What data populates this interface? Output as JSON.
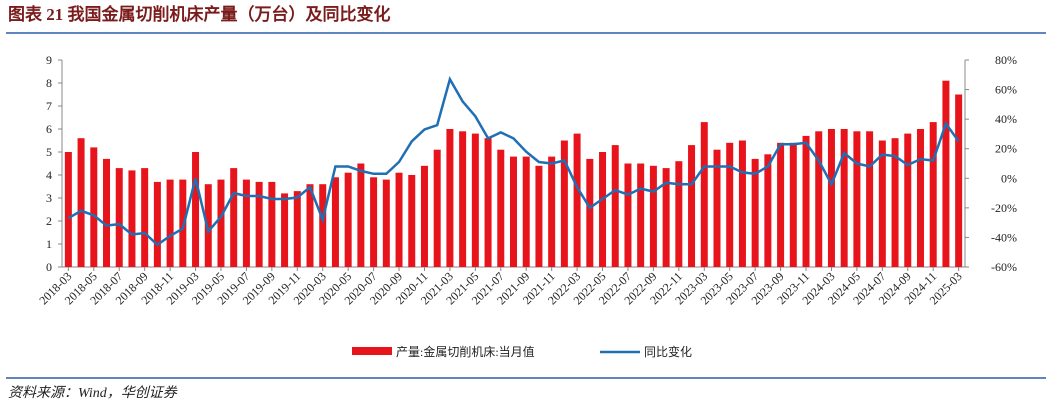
{
  "chart_data": {
    "type": "bar-line",
    "title": "图表 21    我国金属切削机床产量（万台）及同比变化",
    "source": "资料来源：Wind，华创证券",
    "categories": [
      "2018-03",
      null,
      "2018-05",
      null,
      "2018-07",
      null,
      "2018-09",
      null,
      "2018-11",
      null,
      "2019-03",
      null,
      "2019-05",
      null,
      "2019-07",
      null,
      "2019-09",
      null,
      "2019-11",
      null,
      "2020-03",
      null,
      "2020-05",
      null,
      "2020-07",
      null,
      "2020-09",
      null,
      "2020-11",
      null,
      "2021-03",
      null,
      "2021-05",
      null,
      "2021-07",
      null,
      "2021-09",
      null,
      "2021-11",
      null,
      "2022-03",
      null,
      "2022-05",
      null,
      "2022-07",
      null,
      "2022-09",
      null,
      "2022-11",
      null,
      "2023-03",
      null,
      "2023-05",
      null,
      "2023-07",
      null,
      "2023-09",
      null,
      "2023-11",
      null,
      "2024-03",
      null,
      "2024-05",
      null,
      "2024-07",
      null,
      "2024-09",
      null,
      "2024-11",
      null,
      "2025-03"
    ],
    "series": [
      {
        "name": "产量:金属切削机床:当月值",
        "color": "#e8141c",
        "kind": "bar",
        "values": [
          5.0,
          5.6,
          5.2,
          4.7,
          4.3,
          4.2,
          4.3,
          3.7,
          3.8,
          3.8,
          5.0,
          3.6,
          3.8,
          4.3,
          3.8,
          3.7,
          3.7,
          3.2,
          3.3,
          3.6,
          3.6,
          3.9,
          4.1,
          4.5,
          3.9,
          3.8,
          4.1,
          4.0,
          4.4,
          5.1,
          6.0,
          5.9,
          5.8,
          5.6,
          5.1,
          4.8,
          4.8,
          4.4,
          4.8,
          5.5,
          5.8,
          4.7,
          5.0,
          5.3,
          4.5,
          4.5,
          4.4,
          4.3,
          4.6,
          5.3,
          6.3,
          5.1,
          5.4,
          5.5,
          4.7,
          4.9,
          5.4,
          5.4,
          5.7,
          5.9,
          6.0,
          6.0,
          5.9,
          5.9,
          5.5,
          5.6,
          5.8,
          6.0,
          6.3,
          8.1,
          7.5
        ]
      },
      {
        "name": "同比变化",
        "color": "#1f6fb5",
        "kind": "line",
        "axis": "y2",
        "values": [
          -27,
          -22,
          -25,
          -32,
          -31,
          -38,
          -37,
          -45,
          -39,
          -34,
          0,
          -36,
          -26,
          -10,
          -12,
          -12,
          -14,
          -14,
          -13,
          -6,
          -28,
          8,
          8,
          5,
          3,
          3,
          11,
          25,
          33,
          36,
          67,
          52,
          42,
          27,
          31,
          27,
          18,
          11,
          10,
          12,
          -6,
          -20,
          -14,
          -8,
          -11,
          -7,
          -9,
          -3,
          -4,
          -4,
          8,
          8,
          8,
          4,
          3,
          8,
          23,
          23,
          24,
          12,
          -4,
          17,
          10,
          8,
          16,
          15,
          9,
          13,
          12,
          37,
          25
        ]
      }
    ],
    "ylim": [
      0,
      9
    ],
    "yticks": [
      0,
      1,
      2,
      3,
      4,
      5,
      6,
      7,
      8,
      9
    ],
    "y2lim": [
      -60,
      80
    ],
    "y2ticks": [
      {
        "value": -60,
        "label": "-60%"
      },
      {
        "value": -40,
        "label": "-40%"
      },
      {
        "value": -20,
        "label": "-20%"
      },
      {
        "value": 0,
        "label": "0%"
      },
      {
        "value": 20,
        "label": "20%"
      },
      {
        "value": 40,
        "label": "40%"
      },
      {
        "value": 60,
        "label": "60%"
      },
      {
        "value": 80,
        "label": "80%"
      }
    ]
  }
}
